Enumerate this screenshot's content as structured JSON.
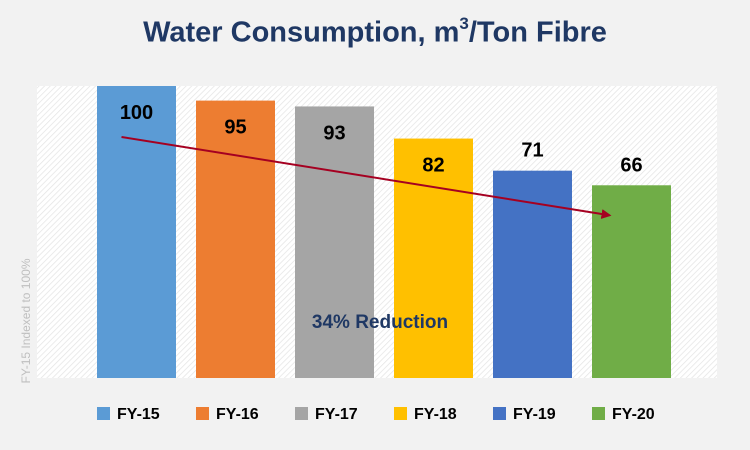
{
  "title": {
    "main": "Water Consumption, m",
    "superscript": "3",
    "suffix": "/Ton Fibre"
  },
  "side_note": "FY-15 Indexed to 100%",
  "unit_label": "%",
  "chart_data": {
    "type": "bar",
    "title": "Water Consumption, m³/Ton Fibre",
    "categories": [
      "FY-15",
      "FY-16",
      "FY-17",
      "FY-18",
      "FY-19",
      "FY-20"
    ],
    "values": [
      100,
      95,
      93,
      82,
      71,
      66
    ],
    "colors": [
      "#5b9bd5",
      "#ed7d31",
      "#a5a5a5",
      "#ffc000",
      "#4472c4",
      "#70ad47"
    ],
    "ylim": [
      0,
      100
    ],
    "grid": false,
    "legend": "bottom",
    "annotation": "34% Reduction",
    "trend_arrow": {
      "from": "FY-15",
      "to": "FY-20",
      "color": "#a50021"
    }
  }
}
